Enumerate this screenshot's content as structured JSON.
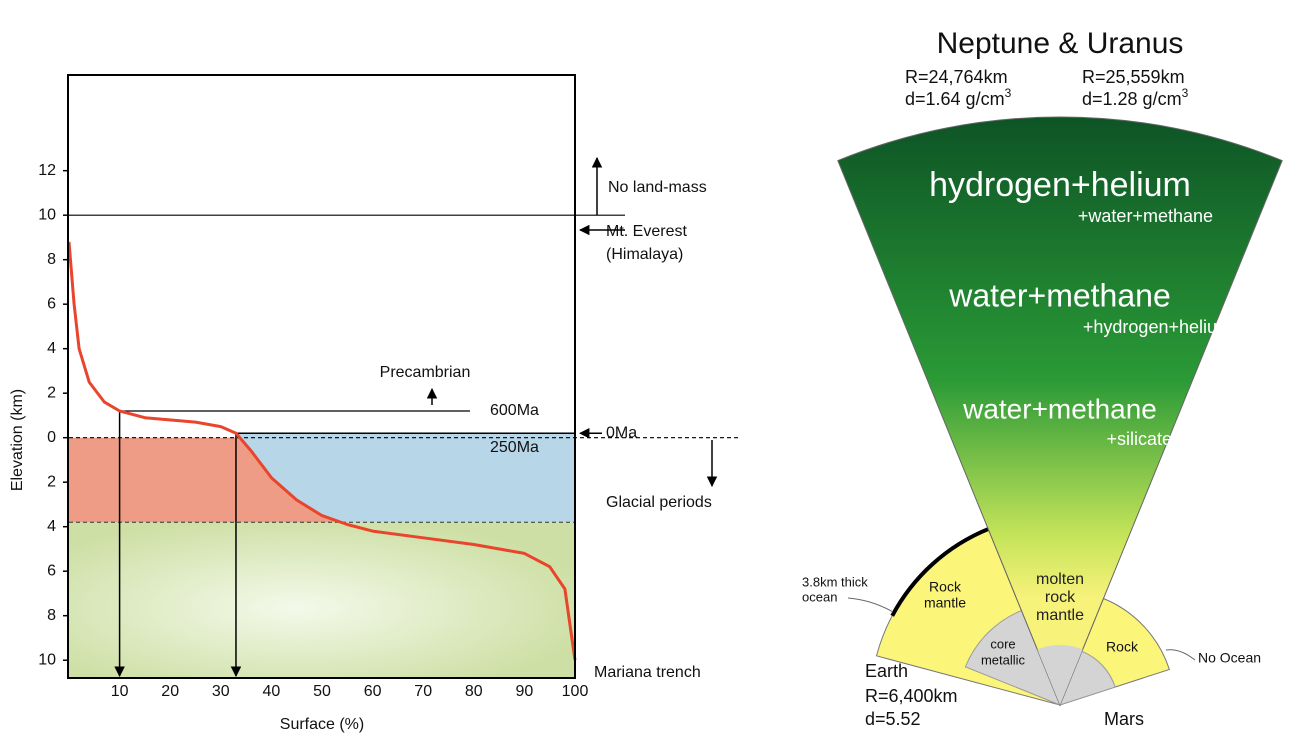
{
  "chart_data": {
    "type": "line",
    "x_label": "Surface (%)",
    "y_label": "Elevation (km)",
    "xlim": [
      0,
      100
    ],
    "xticks": [
      10,
      20,
      30,
      40,
      50,
      60,
      70,
      80,
      90,
      100
    ],
    "ylim": [
      -10.8,
      16.3
    ],
    "yticks": [
      {
        "value": -10,
        "label": "10"
      },
      {
        "value": -8,
        "label": "8"
      },
      {
        "value": -6,
        "label": "6"
      },
      {
        "value": -4,
        "label": "4"
      },
      {
        "value": -2,
        "label": "2"
      },
      0,
      2,
      4,
      6,
      8,
      10,
      12
    ],
    "series": [
      {
        "color": "#e8452c",
        "x": [
          0,
          1,
          2,
          4,
          7,
          10,
          15,
          25,
          30,
          33,
          36,
          40,
          45,
          50,
          55,
          60,
          70,
          80,
          90,
          95,
          98,
          100
        ],
        "values": [
          8.8,
          6,
          4,
          2.5,
          1.6,
          1.2,
          0.9,
          0.7,
          0.5,
          0.2,
          -0.6,
          -1.8,
          -2.8,
          -3.5,
          -3.9,
          -4.2,
          -4.5,
          -4.8,
          -5.2,
          -5.8,
          -6.8,
          -10
        ]
      }
    ],
    "drop_lines": [
      10,
      33
    ],
    "levels": [
      {
        "label": "600Ma",
        "value": 1.2
      },
      {
        "label": "0Ma",
        "value": 0.2
      },
      {
        "label": "250Ma",
        "value": 0
      }
    ],
    "everest": {
      "label": "Mt. Everest",
      "sublabel": "(Himalaya)",
      "value": 10
    },
    "glacial": {
      "label": "Glacial periods",
      "value": -3.8
    },
    "annotations": [
      "No land-mass",
      "Precambrian",
      "Mariana trench"
    ]
  },
  "diagram": {
    "title": "Neptune & Uranus",
    "neptune": {
      "radius": "R=24,764km",
      "density": "d=1.64 g/cm",
      "unit_sup": "3"
    },
    "uranus": {
      "radius": "R=25,559km",
      "density": "d=1.28 g/cm",
      "unit_sup": "3"
    },
    "layers": [
      {
        "main": "hydrogen+helium",
        "sub": "+water+methane"
      },
      {
        "main": "water+methane",
        "sub": "+hydrogen+helium"
      },
      {
        "main": "water+methane",
        "sub": "+silicate"
      }
    ],
    "molten": [
      "molten",
      "rock",
      "mantle"
    ],
    "earth": {
      "name": "Earth",
      "radius": "R=6,400km",
      "density": "d=5.52",
      "mantle": [
        "Rock",
        "mantle"
      ],
      "core": [
        "core",
        "metallic"
      ],
      "ocean": [
        "3.8km thick",
        "ocean"
      ]
    },
    "mars": {
      "name": "Mars",
      "mantle": "Rock",
      "ocean": "No Ocean"
    }
  }
}
